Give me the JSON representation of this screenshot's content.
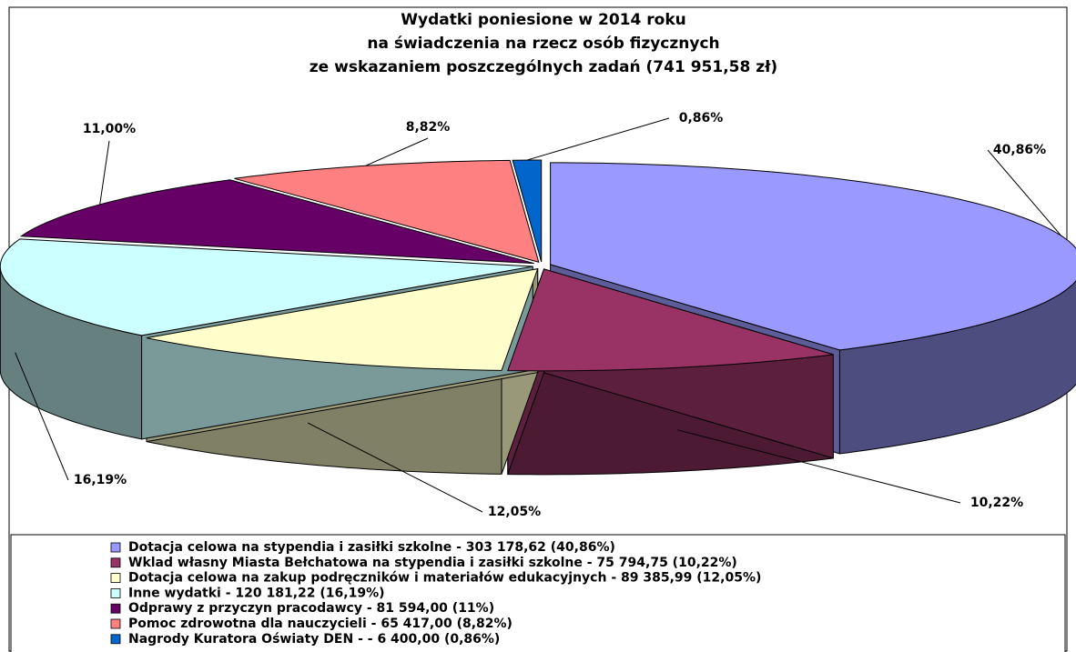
{
  "chart_data": {
    "type": "pie",
    "title": [
      "Wydatki poniesione w 2014 roku",
      "na świadczenia na rzecz osób fizycznych",
      "ze wskazaniem poszczególnych zadań (741 951,58 zł)"
    ],
    "categories": [
      "Dotacja celowa na stypendia i zasiłki szkolne - 303 178,62 (40,86%)",
      "Wklad własny Miasta Bełchatowa na stypendia i zasiłki szkolne - 75 794,75 (10,22%)",
      "Dotacja celowa na zakup podręczników i materiałów edukacyjnych - 89 385,99 (12,05%)",
      "Inne wydatki - 120 181,22 (16,19%)",
      "Odprawy z przyczyn pracodawcy - 81 594,00 (11%)",
      "Pomoc zdrowotna dla nauczycieli - 65 417,00 (8,82%)",
      "Nagrody Kuratora Oświaty DEN - - 6 400,00 (0,86%)"
    ],
    "values": [
      40.86,
      10.22,
      12.05,
      16.19,
      11.0,
      8.82,
      0.86
    ],
    "value_labels": [
      "40,86%",
      "10,22%",
      "12,05%",
      "16,19%",
      "11,00%",
      "8,82%",
      "0,86%"
    ],
    "colors": [
      "#9999ff",
      "#993366",
      "#ffffcc",
      "#ccffff",
      "#660066",
      "#ff8080",
      "#0066cc"
    ],
    "legend": "bottom"
  }
}
